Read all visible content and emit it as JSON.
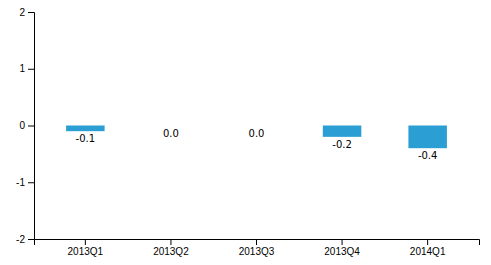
{
  "chart_data": {
    "type": "bar",
    "categories": [
      "2013Q1",
      "2013Q2",
      "2013Q3",
      "2013Q4",
      "2014Q1"
    ],
    "values": [
      -0.1,
      0.0,
      0.0,
      -0.2,
      -0.4
    ],
    "value_labels": [
      "-0.1",
      "0.0",
      "0.0",
      "-0.2",
      "-0.4"
    ],
    "data_labels": true,
    "color": "#2b9fd4",
    "ylim": [
      -2,
      2
    ],
    "yticks": [
      -2,
      -1,
      0,
      1,
      2
    ]
  }
}
